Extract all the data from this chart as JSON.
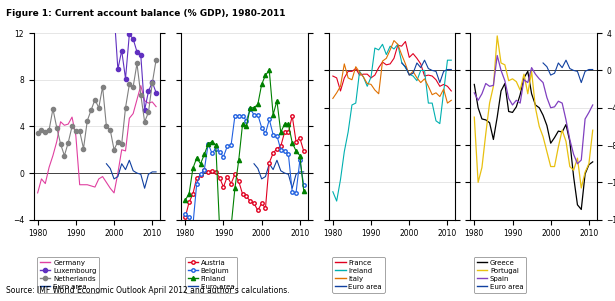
{
  "title": "Figure 1: Current account balance (% GDP), 1980-2011",
  "source": "Source: IMF World Economic Outlook April 2012 and author’s calculations.",
  "years": [
    1980,
    1981,
    1982,
    1983,
    1984,
    1985,
    1986,
    1987,
    1988,
    1989,
    1990,
    1991,
    1992,
    1993,
    1994,
    1995,
    1996,
    1997,
    1998,
    1999,
    2000,
    2001,
    2002,
    2003,
    2004,
    2005,
    2006,
    2007,
    2008,
    2009,
    2010,
    2011
  ],
  "panel1": {
    "Germany": [
      -1.7,
      -0.5,
      -0.9,
      0.5,
      1.5,
      2.7,
      4.4,
      4.1,
      4.2,
      4.8,
      3.2,
      -1.0,
      -1.0,
      -1.0,
      -1.1,
      -1.2,
      -0.5,
      -0.3,
      -0.8,
      -1.3,
      -1.7,
      -0.0,
      2.0,
      1.9,
      4.7,
      5.1,
      6.3,
      7.5,
      6.2,
      6.0,
      6.1,
      5.7
    ],
    "Luxembourg": [
      null,
      null,
      null,
      null,
      null,
      null,
      null,
      null,
      null,
      null,
      null,
      null,
      null,
      null,
      null,
      null,
      null,
      null,
      null,
      null,
      13.8,
      8.9,
      10.5,
      8.1,
      11.9,
      11.5,
      10.4,
      10.1,
      5.4,
      7.0,
      7.8,
      6.9
    ],
    "Netherlands": [
      3.4,
      3.7,
      3.5,
      3.7,
      5.5,
      3.9,
      2.5,
      1.5,
      2.6,
      4.0,
      3.6,
      3.6,
      2.1,
      4.5,
      5.4,
      6.3,
      5.6,
      7.4,
      4.0,
      3.7,
      2.0,
      2.7,
      2.5,
      5.6,
      7.6,
      7.4,
      9.4,
      6.7,
      4.4,
      5.2,
      7.7,
      9.7
    ],
    "Euro_area": [
      null,
      null,
      null,
      null,
      null,
      null,
      null,
      null,
      null,
      null,
      null,
      null,
      null,
      null,
      null,
      null,
      null,
      null,
      0.8,
      0.4,
      -0.5,
      -0.3,
      0.8,
      0.3,
      1.1,
      0.2,
      0.0,
      -0.1,
      -1.3,
      -0.1,
      0.1,
      0.1
    ]
  },
  "panel2": {
    "Austria": [
      -3.8,
      -2.5,
      -1.8,
      -0.4,
      -0.2,
      0.3,
      0.1,
      0.2,
      0.1,
      -0.4,
      -1.2,
      -0.3,
      -0.9,
      -0.1,
      -0.7,
      -1.8,
      -2.0,
      -2.4,
      -2.6,
      -3.2,
      -2.6,
      -3.0,
      0.9,
      1.7,
      2.1,
      2.3,
      3.5,
      3.5,
      4.9,
      2.7,
      3.0,
      1.9
    ],
    "Belgium": [
      -3.5,
      -3.8,
      -4.5,
      -0.9,
      -0.1,
      0.3,
      2.5,
      1.7,
      2.1,
      1.8,
      1.4,
      2.3,
      2.4,
      4.9,
      4.9,
      4.9,
      4.5,
      5.5,
      5.0,
      5.0,
      3.9,
      3.4,
      4.6,
      3.3,
      3.2,
      2.0,
      1.9,
      1.6,
      -1.6,
      -1.7,
      1.1,
      -1.0
    ],
    "Finland": [
      -2.3,
      -1.8,
      0.4,
      1.3,
      0.8,
      1.6,
      2.5,
      2.7,
      2.4,
      -4.8,
      -5.1,
      -6.3,
      -4.6,
      -1.3,
      1.1,
      4.2,
      4.0,
      5.6,
      5.6,
      5.9,
      7.6,
      8.4,
      8.8,
      5.0,
      6.2,
      3.5,
      4.2,
      4.2,
      2.6,
      1.9,
      1.5,
      -1.5
    ],
    "Euro_area2": [
      null,
      null,
      null,
      null,
      null,
      null,
      null,
      null,
      null,
      null,
      null,
      null,
      null,
      null,
      null,
      null,
      null,
      null,
      0.8,
      0.4,
      -0.5,
      -0.3,
      0.8,
      0.3,
      1.1,
      0.2,
      0.0,
      -0.1,
      -1.3,
      -0.1,
      0.1,
      0.1
    ]
  },
  "panel3": {
    "France": [
      -0.6,
      -0.8,
      -2.2,
      -0.8,
      -0.1,
      -0.1,
      0.2,
      -0.5,
      -0.4,
      -0.4,
      -0.8,
      -0.5,
      0.3,
      0.9,
      0.6,
      0.7,
      1.3,
      2.7,
      2.6,
      3.1,
      1.4,
      1.8,
      1.3,
      0.7,
      -0.6,
      -0.5,
      -0.6,
      -1.0,
      -1.7,
      -1.5,
      -1.7,
      -2.2
    ],
    "Ireland": [
      -13.0,
      -14.0,
      -11.7,
      -8.7,
      -6.6,
      -3.7,
      -3.5,
      -0.1,
      -0.7,
      -1.7,
      -0.7,
      2.4,
      2.2,
      2.8,
      1.7,
      2.6,
      2.3,
      2.8,
      0.9,
      0.3,
      -0.4,
      -0.6,
      -1.1,
      0.0,
      0.0,
      -3.5,
      -3.5,
      -5.4,
      -5.7,
      -2.3,
      1.1,
      1.1
    ],
    "Italy": [
      -3.0,
      -2.4,
      -1.7,
      0.7,
      -0.8,
      -1.0,
      0.4,
      -0.2,
      -0.7,
      -1.4,
      -1.5,
      -2.1,
      -2.5,
      1.0,
      1.3,
      2.2,
      3.2,
      2.8,
      1.7,
      0.7,
      -0.5,
      -0.1,
      -0.8,
      -1.3,
      -0.9,
      -1.7,
      -2.6,
      -2.4,
      -2.8,
      -2.0,
      -3.5,
      -3.2
    ],
    "Euro_area3": [
      null,
      null,
      null,
      null,
      null,
      null,
      null,
      null,
      null,
      null,
      null,
      null,
      null,
      null,
      null,
      null,
      null,
      null,
      0.8,
      0.4,
      -0.5,
      -0.3,
      0.8,
      0.3,
      1.1,
      0.2,
      0.0,
      -0.1,
      -1.3,
      -0.1,
      0.1,
      0.1
    ]
  },
  "panel4": {
    "Greece": [
      -1.5,
      -4.0,
      -5.2,
      -5.3,
      -5.6,
      -7.4,
      -5.0,
      -2.2,
      -1.4,
      -4.4,
      -4.5,
      -3.9,
      -2.6,
      -0.8,
      -0.1,
      -2.5,
      -3.7,
      -4.0,
      -4.8,
      -5.9,
      -7.8,
      -7.2,
      -6.5,
      -6.6,
      -5.8,
      -7.6,
      -11.4,
      -14.4,
      -14.9,
      -11.1,
      -10.1,
      -9.8
    ],
    "Portugal": [
      -5.0,
      -12.0,
      -10.4,
      -6.8,
      -3.5,
      -1.7,
      3.7,
      0.8,
      0.6,
      -1.1,
      -0.9,
      -1.2,
      -2.1,
      -0.4,
      -2.5,
      -0.1,
      -4.0,
      -6.0,
      -7.1,
      -8.7,
      -10.3,
      -10.3,
      -8.2,
      -6.4,
      -7.6,
      -10.3,
      -10.7,
      -9.4,
      -12.6,
      -10.9,
      -10.0,
      -6.4
    ],
    "Spain": [
      -2.4,
      -3.2,
      -2.5,
      -1.4,
      -1.7,
      -1.6,
      1.6,
      0.0,
      -1.1,
      -3.0,
      -3.7,
      -3.2,
      -3.5,
      -1.0,
      -1.3,
      0.3,
      -0.4,
      -0.9,
      -1.3,
      -2.9,
      -4.0,
      -3.9,
      -3.3,
      -3.5,
      -5.3,
      -7.4,
      -9.0,
      -10.0,
      -9.6,
      -5.2,
      -4.5,
      -3.7
    ],
    "Euro_area4": [
      null,
      null,
      null,
      null,
      null,
      null,
      null,
      null,
      null,
      null,
      null,
      null,
      null,
      null,
      null,
      null,
      null,
      null,
      0.8,
      0.4,
      -0.5,
      -0.3,
      0.8,
      0.3,
      1.1,
      0.2,
      0.0,
      -0.1,
      -1.3,
      -0.1,
      0.1,
      0.1
    ]
  },
  "colors": {
    "Germany": "#e040a0",
    "Luxembourg": "#6030c0",
    "Netherlands": "#808080",
    "Euro_area": "#1040a0",
    "Austria": "#e00020",
    "Belgium": "#2060e0",
    "Finland": "#008000",
    "France": "#e00020",
    "Ireland": "#00b0b0",
    "Italy": "#e07000",
    "Greece": "#000000",
    "Portugal": "#e8c010",
    "Spain": "#8040c0"
  }
}
